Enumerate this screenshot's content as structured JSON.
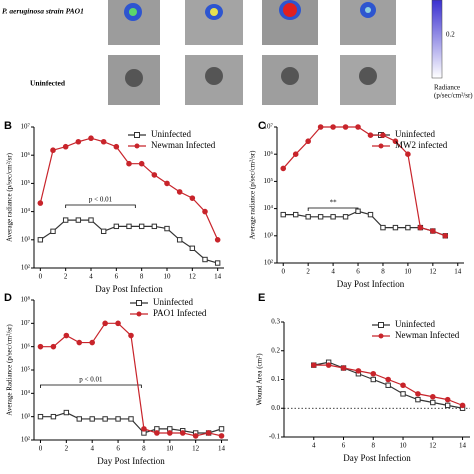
{
  "header": {
    "row1_label": "P. aeruginosa strain PAO1",
    "row2_label": "Uninfected",
    "colorbar": {
      "ticks": [
        0.2
      ],
      "label": [
        "Radiance",
        "(p/sec/cm²/sr)"
      ]
    }
  },
  "chart_data": [
    {
      "type": "line",
      "panel": "B",
      "log_y": true,
      "xlabel": "Day Post Infection",
      "ylabel": "Average radiance (p/sec/cm²/sr)",
      "x": [
        0,
        1,
        2,
        3,
        4,
        5,
        6,
        7,
        8,
        9,
        10,
        11,
        12,
        13,
        14
      ],
      "xlim": [
        -0.5,
        14.5
      ],
      "xticks": [
        0,
        2,
        4,
        6,
        8,
        10,
        12,
        14
      ],
      "ylim": [
        100,
        10000000
      ],
      "yticks": [
        {
          "value": 100,
          "label": "10²"
        },
        {
          "value": 1000,
          "label": "10³"
        },
        {
          "value": 10000,
          "label": "10⁴"
        },
        {
          "value": 100000,
          "label": "10⁵"
        },
        {
          "value": 1000000,
          "label": "10⁶"
        },
        {
          "value": 10000000,
          "label": "10⁷"
        }
      ],
      "annotation": "p < 0.01",
      "series": [
        {
          "name": "Uninfected",
          "color": "#333333",
          "marker": "square",
          "values": [
            1000,
            2000,
            5000,
            5000,
            5000,
            2000,
            3000,
            3000,
            3000,
            3000,
            2500,
            1000,
            500,
            200,
            150
          ]
        },
        {
          "name": "Newman Infected",
          "color": "#c8242b",
          "marker": "circle",
          "values": [
            20000,
            1500000,
            2000000,
            3000000,
            4000000,
            3000000,
            2000000,
            500000,
            500000,
            200000,
            100000,
            50000,
            30000,
            10000,
            1000
          ]
        }
      ]
    },
    {
      "type": "line",
      "panel": "C",
      "log_y": true,
      "xlabel": "Day Post Infection",
      "ylabel": "Average radiance (p/sec/cm²/sr)",
      "x": [
        0,
        1,
        2,
        3,
        4,
        5,
        6,
        7,
        8,
        9,
        10,
        11,
        12,
        13
      ],
      "xlim": [
        -0.5,
        14.5
      ],
      "xticks": [
        0,
        2,
        4,
        6,
        8,
        10,
        12,
        14
      ],
      "ylim": [
        100,
        10000000
      ],
      "yticks": [
        {
          "value": 100,
          "label": "10²"
        },
        {
          "value": 1000,
          "label": "10³"
        },
        {
          "value": 10000,
          "label": "10⁴"
        },
        {
          "value": 100000,
          "label": "10⁵"
        },
        {
          "value": 1000000,
          "label": "10⁶"
        },
        {
          "value": 10000000,
          "label": "10⁷"
        }
      ],
      "annotation": "**",
      "series": [
        {
          "name": "Uninfected",
          "color": "#333333",
          "marker": "square",
          "values": [
            6000,
            6000,
            5000,
            5000,
            5000,
            5000,
            8000,
            6000,
            2000,
            2000,
            2000,
            2000,
            1500,
            1000
          ]
        },
        {
          "name": "MW2 infected",
          "color": "#c8242b",
          "marker": "circle",
          "values": [
            300000,
            1000000,
            3000000,
            10000000,
            10000000,
            10000000,
            10000000,
            5000000,
            5000000,
            3000000,
            1000000,
            2000,
            1500,
            1000
          ]
        }
      ]
    },
    {
      "type": "line",
      "panel": "D",
      "log_y": true,
      "xlabel": "Day Post Infection",
      "ylabel": "Average Radiance (p/sec/cm²/sr)",
      "x": [
        0,
        1,
        2,
        3,
        4,
        5,
        6,
        7,
        8,
        9,
        10,
        11,
        12,
        13,
        14
      ],
      "xlim": [
        -0.5,
        14.5
      ],
      "xticks": [
        0,
        2,
        4,
        6,
        8,
        10,
        12,
        14
      ],
      "ylim": [
        100,
        100000000
      ],
      "yticks": [
        {
          "value": 100,
          "label": "10²"
        },
        {
          "value": 1000,
          "label": "10³"
        },
        {
          "value": 10000,
          "label": "10⁴"
        },
        {
          "value": 100000,
          "label": "10⁵"
        },
        {
          "value": 1000000,
          "label": "10⁶"
        },
        {
          "value": 10000000,
          "label": "10⁷"
        },
        {
          "value": 100000000,
          "label": "10⁸"
        }
      ],
      "annotation": "p < 0.01",
      "series": [
        {
          "name": "Uninfected",
          "color": "#333333",
          "marker": "square",
          "values": [
            1000,
            1000,
            1500,
            800,
            800,
            800,
            800,
            800,
            200,
            300,
            300,
            250,
            200,
            200,
            300
          ]
        },
        {
          "name": "PAO1 Infected",
          "color": "#c8242b",
          "marker": "circle",
          "values": [
            1000000,
            1000000,
            3000000,
            1500000,
            1500000,
            10000000,
            10000000,
            3000000,
            300,
            200,
            200,
            200,
            150,
            200,
            150
          ]
        }
      ]
    },
    {
      "type": "line",
      "panel": "E",
      "log_y": false,
      "xlabel": "Day Post Infection",
      "ylabel": "Wound Area (cm²)",
      "x": [
        4,
        5,
        6,
        7,
        8,
        9,
        10,
        11,
        12,
        13,
        14
      ],
      "xlim": [
        2,
        14.5
      ],
      "xticks": [
        4,
        6,
        8,
        10,
        12,
        14
      ],
      "ylim": [
        -0.1,
        0.3
      ],
      "yticks": [
        -0.1,
        {
          "value": 0,
          "label": "0.0"
        },
        0.1,
        0.2,
        0.3
      ],
      "series": [
        {
          "name": "Uninfected",
          "color": "#333333",
          "marker": "square",
          "values": [
            0.15,
            0.16,
            0.14,
            0.12,
            0.1,
            0.08,
            0.05,
            0.03,
            0.02,
            0.01,
            0.0
          ]
        },
        {
          "name": "Newman Infected",
          "color": "#c8242b",
          "marker": "circle",
          "values": [
            0.15,
            0.15,
            0.14,
            0.13,
            0.12,
            0.1,
            0.08,
            0.05,
            0.04,
            0.03,
            0.01
          ]
        }
      ]
    }
  ]
}
